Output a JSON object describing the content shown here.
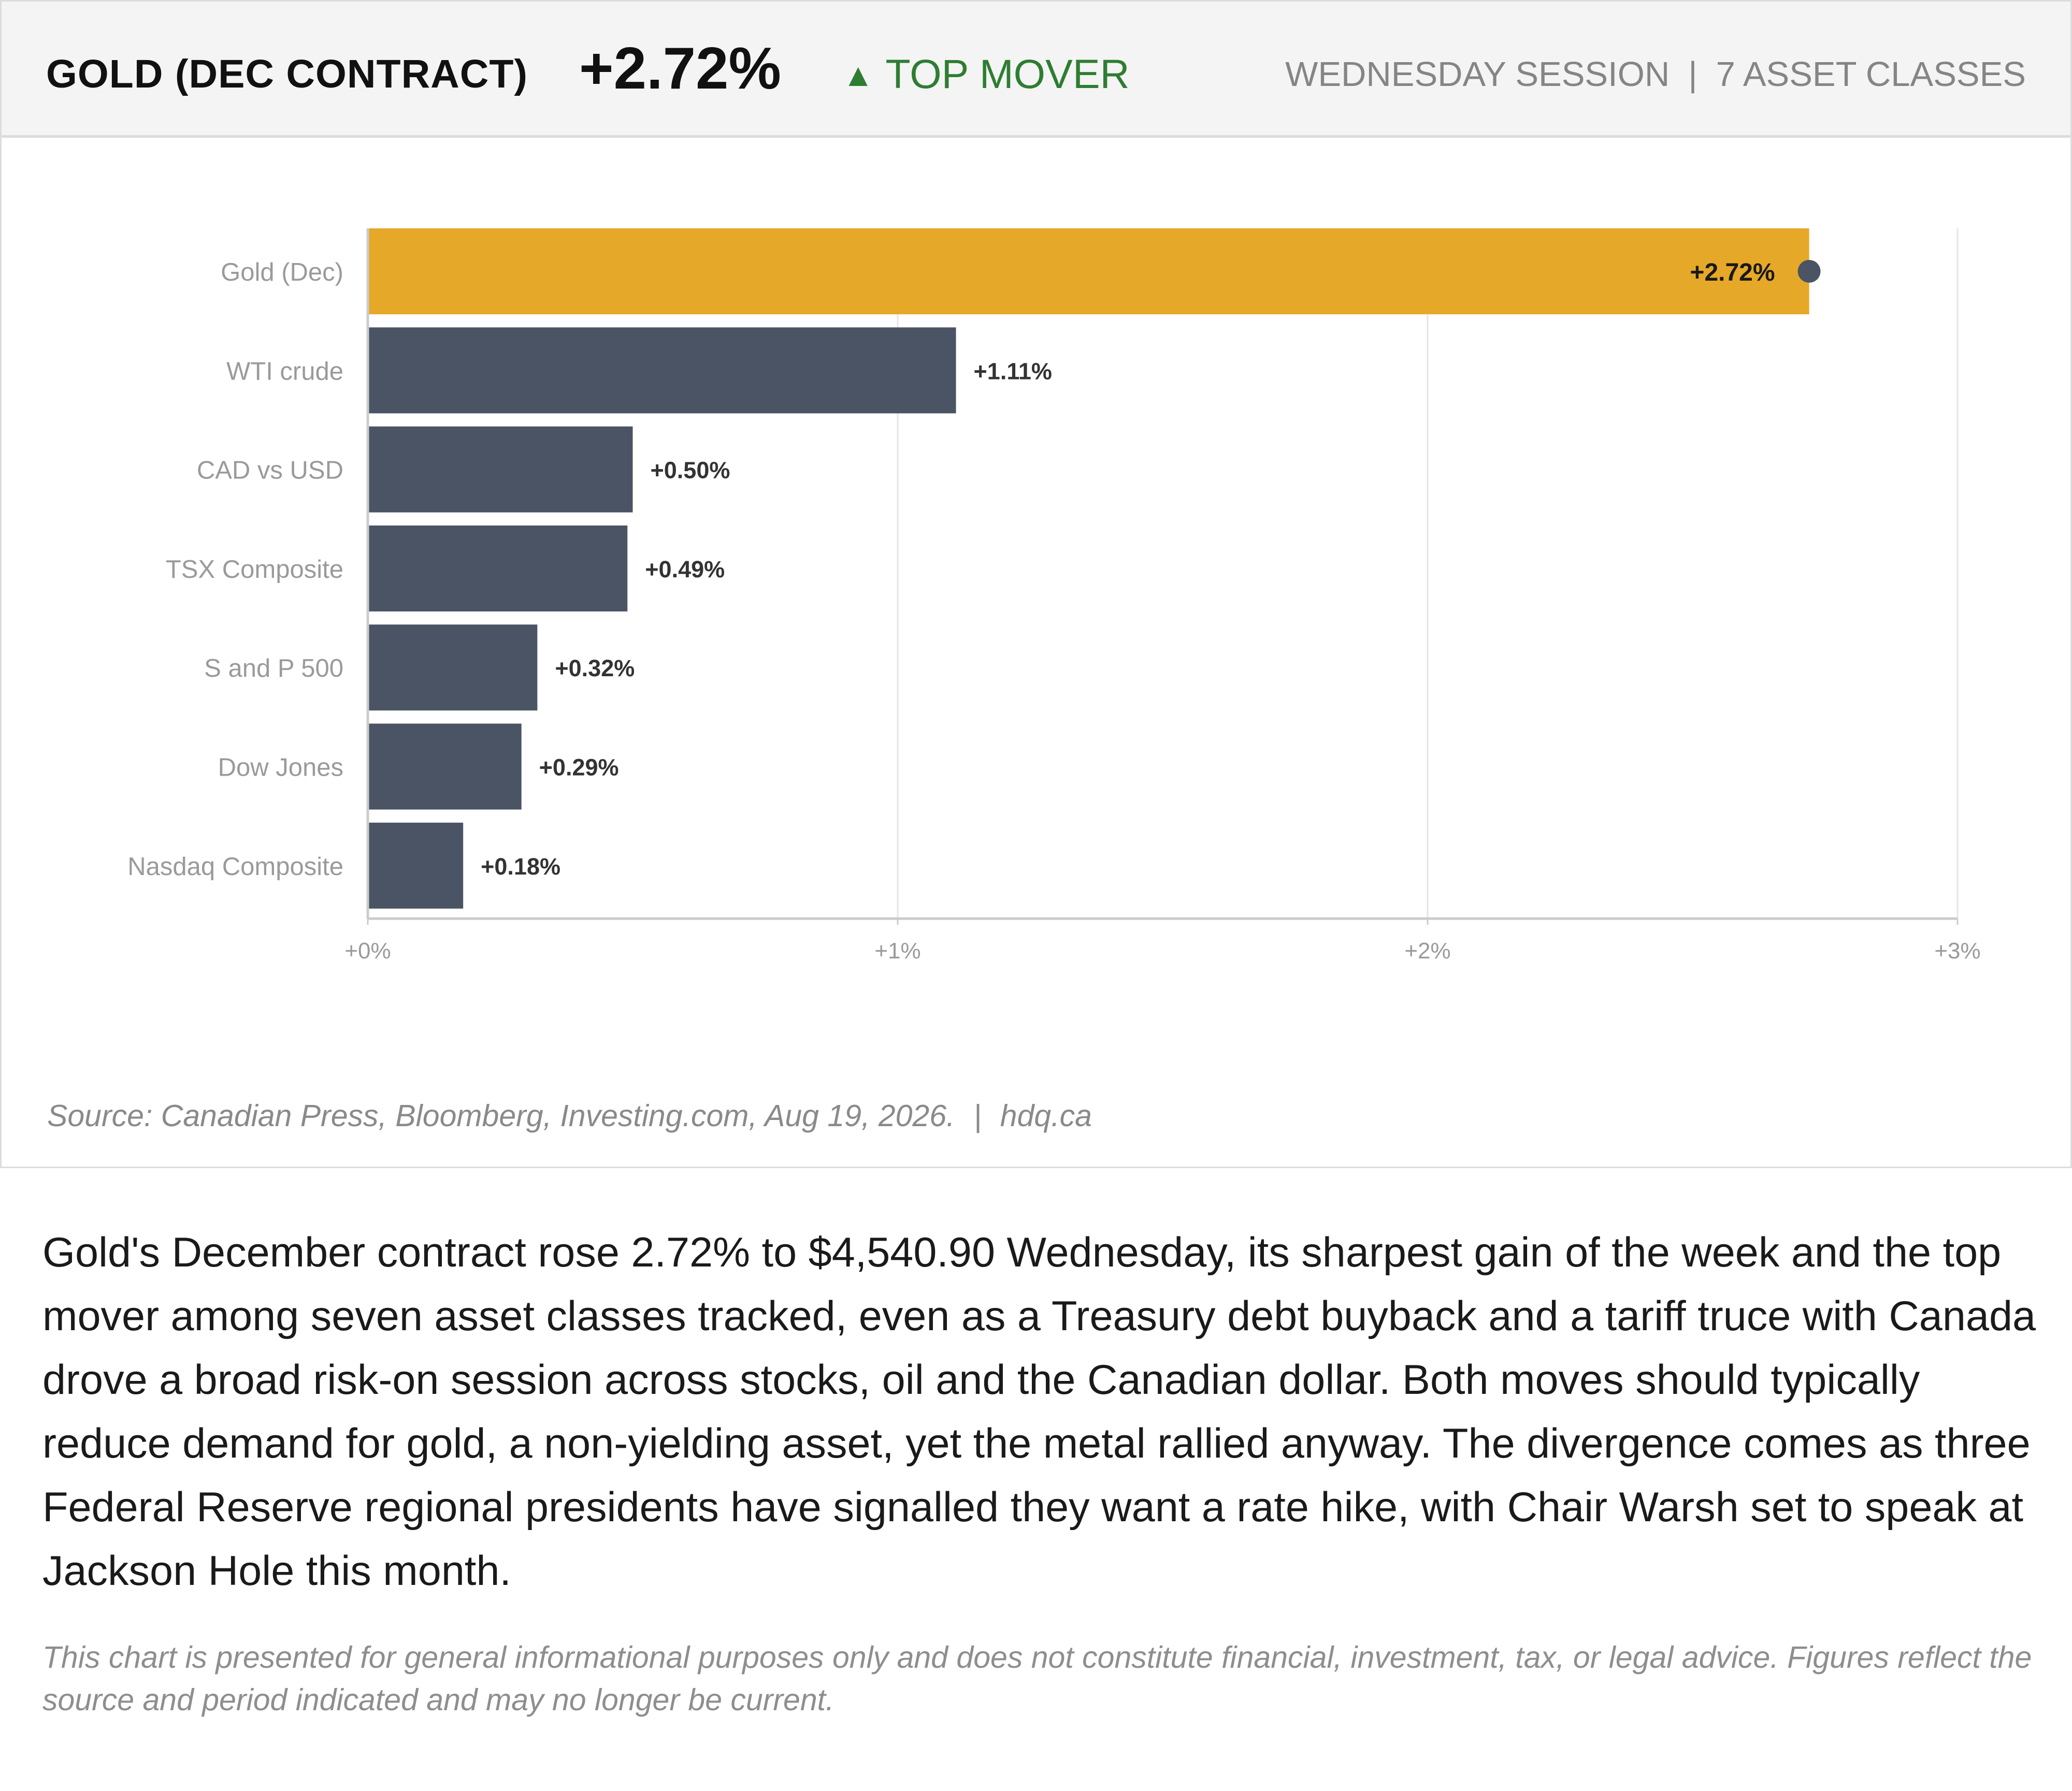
{
  "header": {
    "title": "GOLD (DEC CONTRACT)",
    "value": "+2.72%",
    "badge_arrow": "▲",
    "badge_label": "TOP MOVER",
    "session": "WEDNESDAY SESSION",
    "separator": "|",
    "asset_count": "7 ASSET CLASSES"
  },
  "chart_data": {
    "type": "bar",
    "orientation": "horizontal",
    "categories": [
      "Gold (Dec)",
      "WTI crude",
      "CAD vs USD",
      "TSX Composite",
      "S and P 500",
      "Dow Jones",
      "Nasdaq Composite"
    ],
    "values": [
      2.72,
      1.11,
      0.5,
      0.49,
      0.32,
      0.29,
      0.18
    ],
    "value_labels": [
      "+2.72%",
      "+1.11%",
      "+0.50%",
      "+0.49%",
      "+0.32%",
      "+0.29%",
      "+0.18%"
    ],
    "highlight_index": 0,
    "xlim": [
      0,
      3
    ],
    "xticks": [
      0,
      1,
      2,
      3
    ],
    "xtick_labels": [
      "+0%",
      "+1%",
      "+2%",
      "+3%"
    ],
    "grid": true,
    "colors": {
      "highlight": "#E6A828",
      "default": "#4A5464",
      "marker": "#4A5464",
      "grid": "#e6e6e6",
      "axis": "#cccccc"
    }
  },
  "source": {
    "text": "Source: Canadian Press, Bloomberg, Investing.com, Aug 19, 2026.",
    "separator": "|",
    "site": "hdq.ca"
  },
  "body_text": "Gold's December contract rose 2.72% to $4,540.90 Wednesday, its sharpest gain of the week and the top mover among seven asset classes tracked, even as a Treasury debt buyback and a tariff truce with Canada drove a broad risk-on session across stocks, oil and the Canadian dollar. Both moves should typically reduce demand for gold, a non-yielding asset, yet the metal rallied anyway. The divergence comes as three Federal Reserve regional presidents have signalled they want a rate hike, with Chair Warsh set to speak at Jackson Hole this month.",
  "disclaimer": "This chart is presented for general informational purposes only and does not constitute financial, investment, tax, or legal advice. Figures reflect the source and period indicated and may no longer be current."
}
